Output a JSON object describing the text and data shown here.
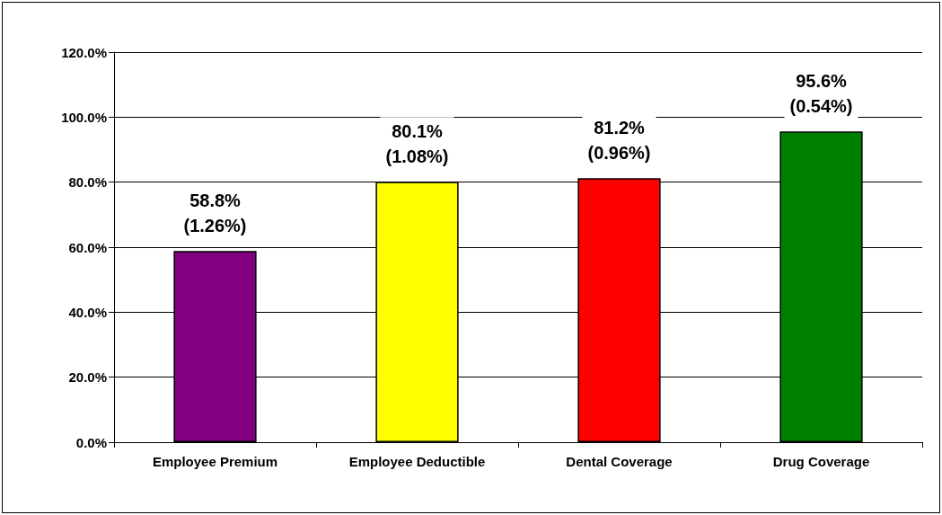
{
  "chart_data": {
    "type": "bar",
    "categories": [
      "Employee Premium",
      "Employee Deductible",
      "Dental Coverage",
      "Drug Coverage"
    ],
    "values": [
      58.8,
      80.1,
      81.2,
      95.6
    ],
    "colors": [
      "#800080",
      "#ffff00",
      "#ff0000",
      "#008000"
    ],
    "value_labels": [
      "58.8%\n(1.26%)",
      "80.1%\n(1.08%)",
      "81.2%\n(0.96%)",
      "95.6%\n(0.54%)"
    ],
    "ylim": [
      0,
      120
    ],
    "yticks": [
      {
        "value": 0,
        "label": "0.0%"
      },
      {
        "value": 20,
        "label": "20.0%"
      },
      {
        "value": 40,
        "label": "40.0%"
      },
      {
        "value": 60,
        "label": "60.0%"
      },
      {
        "value": 80,
        "label": "80.0%"
      },
      {
        "value": 100,
        "label": "100.0%"
      },
      {
        "value": 120,
        "label": "120.0%"
      }
    ],
    "grid": "y"
  }
}
